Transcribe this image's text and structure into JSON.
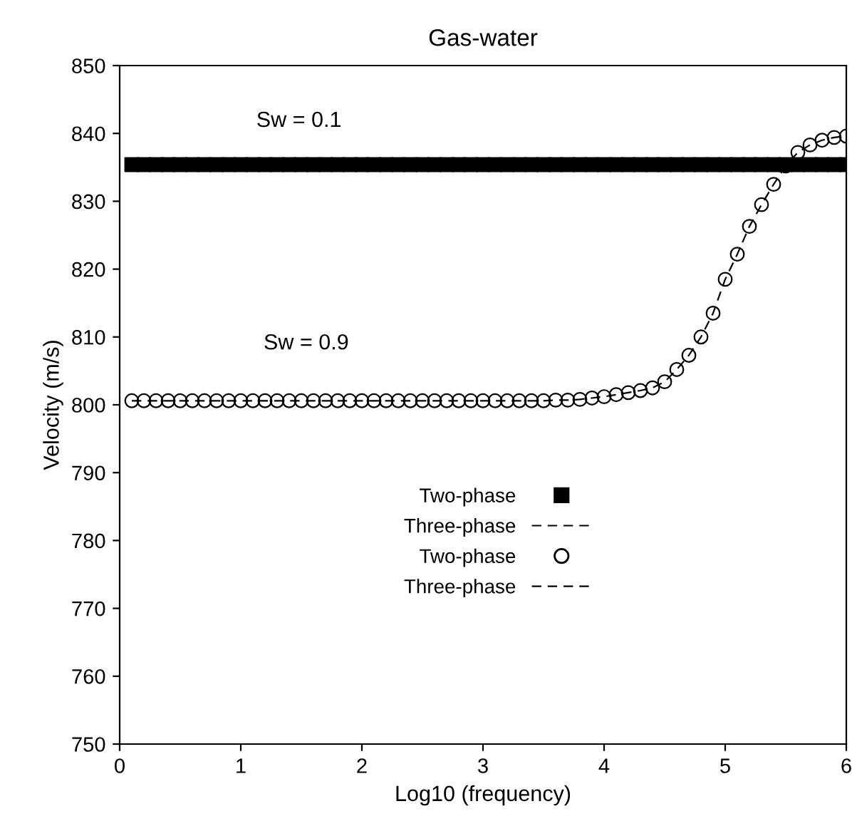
{
  "chart_data": {
    "type": "scatter",
    "title": "Gas-water",
    "xlabel": "Log10 (frequency)",
    "ylabel": "Velocity (m/s)",
    "x": [
      0.1,
      0.2,
      0.3,
      0.4,
      0.5,
      0.6,
      0.7,
      0.8,
      0.9,
      1.0,
      1.1,
      1.2,
      1.3,
      1.4,
      1.5,
      1.6,
      1.7,
      1.8,
      1.9,
      2.0,
      2.1,
      2.2,
      2.3,
      2.4,
      2.5,
      2.6,
      2.7,
      2.8,
      2.9,
      3.0,
      3.1,
      3.2,
      3.3,
      3.4,
      3.5,
      3.6,
      3.7,
      3.8,
      3.9,
      4.0,
      4.1,
      4.2,
      4.3,
      4.4,
      4.5,
      4.6,
      4.7,
      4.8,
      4.9,
      5.0,
      5.1,
      5.2,
      5.3,
      5.4,
      5.5,
      5.6,
      5.7,
      5.8,
      5.9,
      6.0
    ],
    "series": [
      {
        "name": "Two-phase",
        "color": "#000000",
        "marker": "square",
        "values": [
          835.4,
          835.4,
          835.4,
          835.4,
          835.4,
          835.4,
          835.4,
          835.4,
          835.4,
          835.4,
          835.4,
          835.4,
          835.4,
          835.4,
          835.4,
          835.4,
          835.4,
          835.4,
          835.4,
          835.4,
          835.4,
          835.4,
          835.4,
          835.4,
          835.4,
          835.4,
          835.4,
          835.4,
          835.4,
          835.4,
          835.4,
          835.4,
          835.4,
          835.4,
          835.4,
          835.4,
          835.4,
          835.4,
          835.4,
          835.4,
          835.4,
          835.4,
          835.4,
          835.4,
          835.4,
          835.4,
          835.4,
          835.4,
          835.4,
          835.4,
          835.4,
          835.4,
          835.4,
          835.4,
          835.4,
          835.4,
          835.4,
          835.4,
          835.4,
          835.4
        ]
      },
      {
        "name": "Three-phase",
        "type": "line",
        "line_style": "dashed",
        "color": "#000000",
        "values": [
          null,
          null,
          null,
          null,
          null,
          null,
          null,
          null,
          null,
          null,
          null,
          null,
          null,
          null,
          null,
          null,
          null,
          null,
          null,
          null,
          null,
          null,
          null,
          null,
          null,
          null,
          null,
          null,
          null,
          null,
          null,
          null,
          null,
          null,
          null,
          null,
          null,
          null,
          null,
          null,
          null,
          null,
          null,
          null,
          null,
          null,
          null,
          null,
          null,
          null,
          null,
          null,
          null,
          null,
          null,
          null,
          null,
          null,
          null,
          null
        ]
      },
      {
        "name": "Two-phase",
        "color": "#000000",
        "marker": "circle",
        "values": [
          800.6,
          800.6,
          800.6,
          800.6,
          800.6,
          800.6,
          800.6,
          800.6,
          800.6,
          800.6,
          800.6,
          800.6,
          800.6,
          800.6,
          800.6,
          800.6,
          800.6,
          800.6,
          800.6,
          800.6,
          800.6,
          800.6,
          800.6,
          800.6,
          800.6,
          800.6,
          800.6,
          800.6,
          800.6,
          800.6,
          800.6,
          800.6,
          800.6,
          800.6,
          800.6,
          800.7,
          800.7,
          800.8,
          801.0,
          801.2,
          801.5,
          801.8,
          802.1,
          802.5,
          803.4,
          805.2,
          807.3,
          810.0,
          813.5,
          818.5,
          822.2,
          826.3,
          829.5,
          832.5,
          835.2,
          837.2,
          838.3,
          839.0,
          839.4,
          839.6
        ]
      },
      {
        "name": "Three-phase",
        "type": "line",
        "line_style": "dashed",
        "color": "#000000",
        "values": [
          800.6,
          800.6,
          800.6,
          800.6,
          800.6,
          800.6,
          800.6,
          800.6,
          800.6,
          800.6,
          800.6,
          800.6,
          800.6,
          800.6,
          800.6,
          800.6,
          800.6,
          800.6,
          800.6,
          800.6,
          800.6,
          800.6,
          800.6,
          800.6,
          800.6,
          800.6,
          800.6,
          800.6,
          800.6,
          800.6,
          800.6,
          800.6,
          800.6,
          800.6,
          800.6,
          800.7,
          800.7,
          800.8,
          801.0,
          801.2,
          801.5,
          801.8,
          802.1,
          802.5,
          803.4,
          805.2,
          807.3,
          810.0,
          813.5,
          818.5,
          822.2,
          826.3,
          829.5,
          832.5,
          835.2,
          837.2,
          838.3,
          839.0,
          839.4,
          839.6
        ]
      }
    ],
    "annotations": [
      "Sw = 0.1",
      "Sw = 0.9"
    ],
    "xlim": [
      0,
      6
    ],
    "xticks": [
      0,
      1,
      2,
      3,
      4,
      5,
      6
    ],
    "ylim": [
      750,
      850
    ],
    "yticks": [
      750,
      760,
      770,
      780,
      790,
      800,
      810,
      820,
      830,
      840,
      850
    ],
    "legend": "bottom",
    "grid": false
  }
}
